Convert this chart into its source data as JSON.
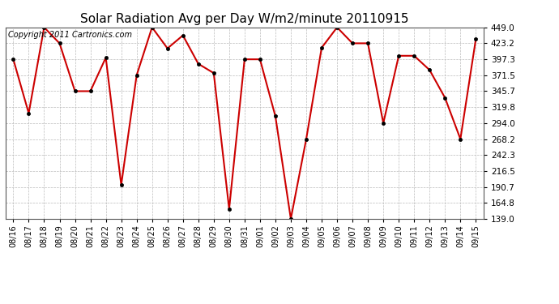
{
  "title": "Solar Radiation Avg per Day W/m2/minute 20110915",
  "copyright_text": "Copyright 2011 Cartronics.com",
  "dates": [
    "08/16",
    "08/17",
    "08/18",
    "08/19",
    "08/20",
    "08/21",
    "08/22",
    "08/23",
    "08/24",
    "08/25",
    "08/26",
    "08/27",
    "08/28",
    "08/29",
    "08/30",
    "08/31",
    "09/01",
    "09/02",
    "09/03",
    "09/04",
    "09/05",
    "09/06",
    "09/07",
    "09/08",
    "09/09",
    "09/10",
    "09/11",
    "09/12",
    "09/13",
    "09/14",
    "09/15"
  ],
  "values": [
    397.3,
    310.0,
    449.0,
    423.2,
    345.7,
    345.7,
    400.0,
    194.0,
    371.5,
    449.0,
    415.0,
    436.0,
    390.0,
    375.0,
    155.0,
    397.3,
    397.3,
    305.0,
    139.0,
    268.2,
    416.0,
    449.0,
    423.2,
    423.2,
    294.0,
    403.0,
    403.0,
    380.0,
    335.0,
    268.2,
    430.0
  ],
  "yticks": [
    139.0,
    164.8,
    190.7,
    216.5,
    242.3,
    268.2,
    294.0,
    319.8,
    345.7,
    371.5,
    397.3,
    423.2,
    449.0
  ],
  "ymin": 139.0,
  "ymax": 449.0,
  "line_color": "#cc0000",
  "marker_color": "#000000",
  "bg_color": "#ffffff",
  "grid_color": "#bbbbbb",
  "title_fontsize": 11,
  "copyright_fontsize": 7,
  "tick_fontsize": 7.5,
  "xtick_fontsize": 7
}
